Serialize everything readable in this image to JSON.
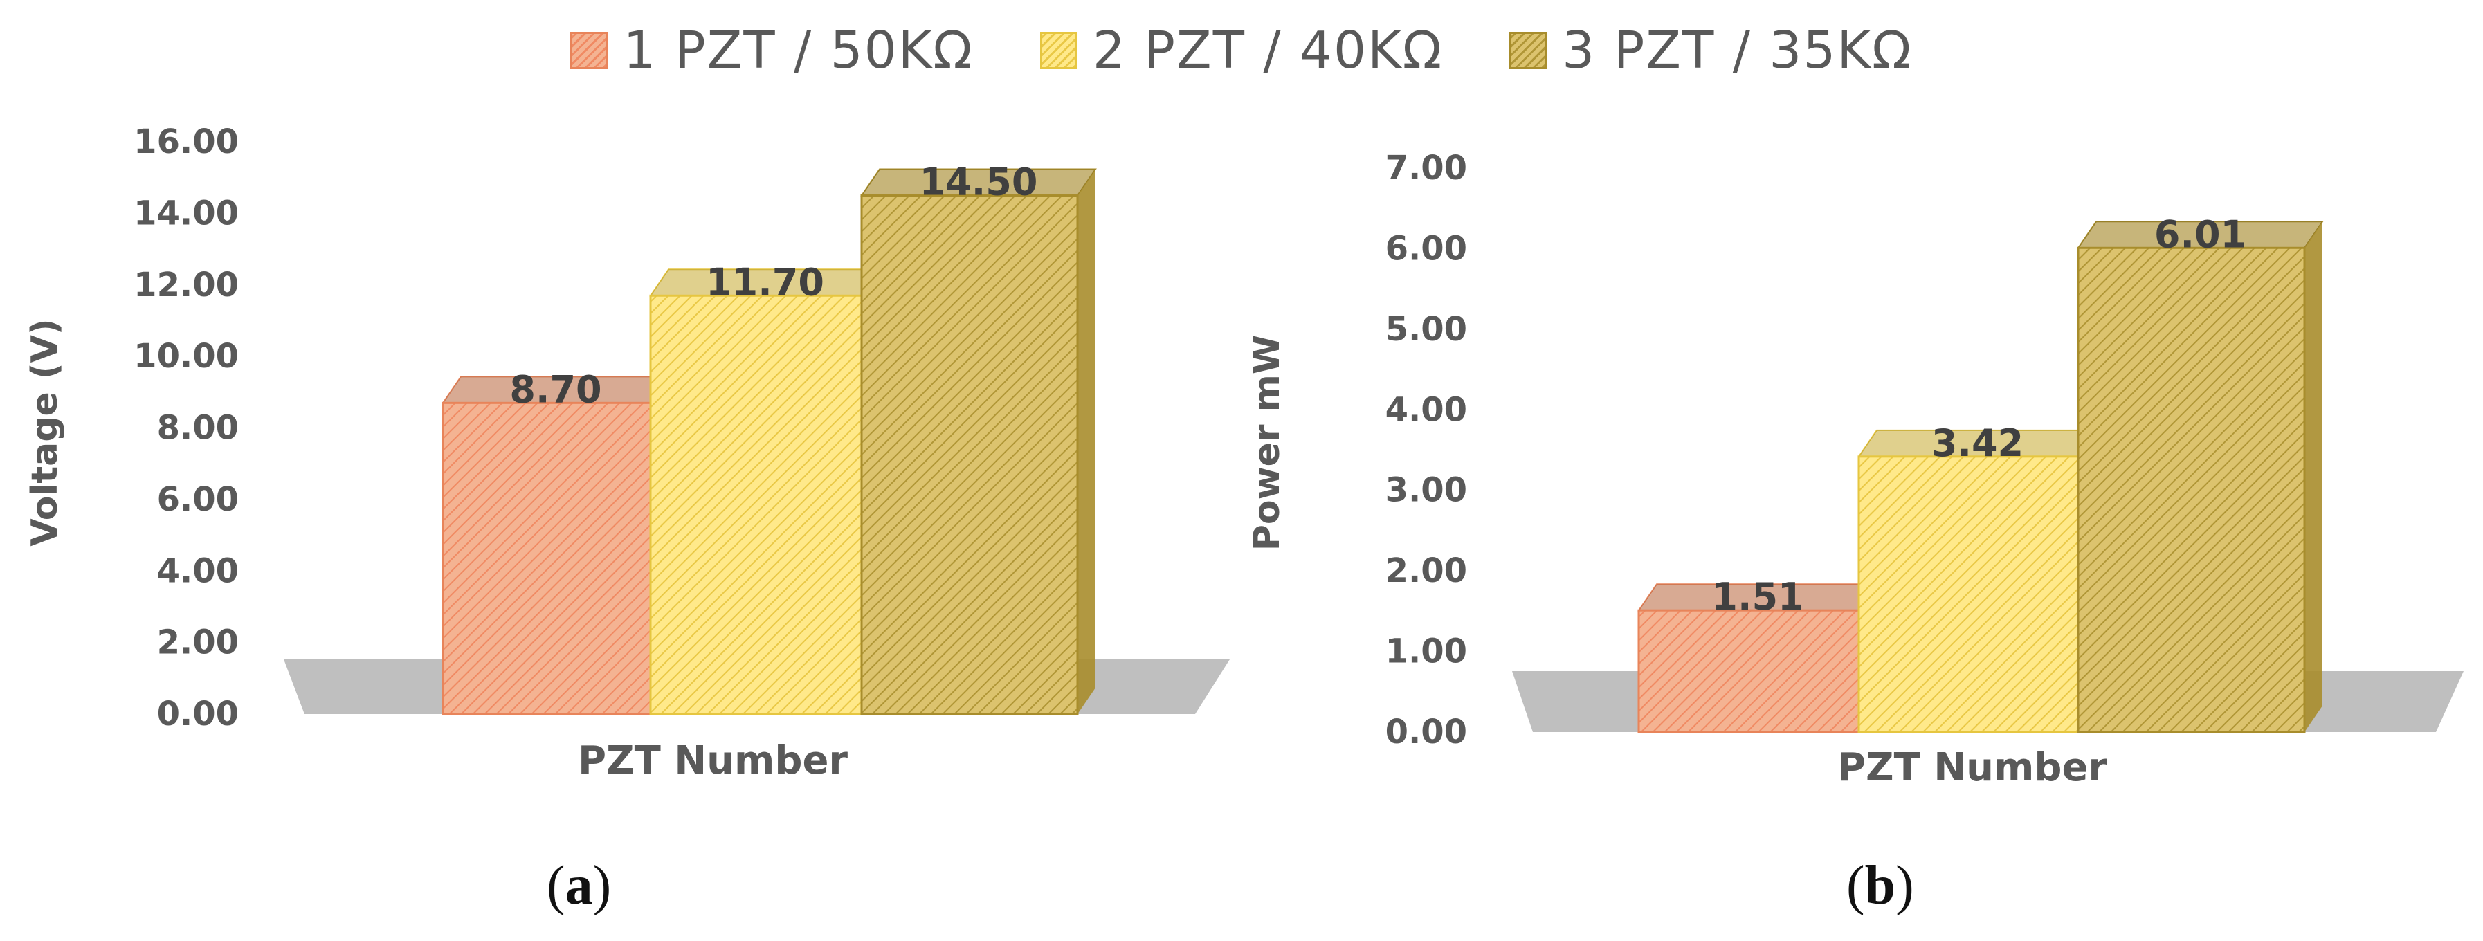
{
  "legend": {
    "items": [
      {
        "label": "1 PZT / 50KΩ",
        "color": "#f4b392",
        "stroke": "#e8845a"
      },
      {
        "label": "2 PZT / 40KΩ",
        "color": "#ffe98a",
        "stroke": "#e6c640"
      },
      {
        "label": "3 PZT / 35KΩ",
        "color": "#dcc36e",
        "stroke": "#a88d2c"
      }
    ]
  },
  "panels": {
    "a": {
      "open": "(",
      "letter": "a",
      "close": ")"
    },
    "b": {
      "open": "(",
      "letter": "b",
      "close": ")"
    }
  },
  "chart_data": [
    {
      "type": "bar",
      "style": "3d-hatched",
      "categories": [
        "PZT Number"
      ],
      "series": [
        {
          "name": "1 PZT / 50KΩ",
          "values": [
            8.7
          ]
        },
        {
          "name": "2 PZT / 40KΩ",
          "values": [
            11.7
          ]
        },
        {
          "name": "3 PZT / 35KΩ",
          "values": [
            14.5
          ]
        }
      ],
      "data_labels": [
        "8.70",
        "11.70",
        "14.50"
      ],
      "xlabel": "PZT Number",
      "ylabel": "Voltage (V)",
      "ylim": [
        0,
        16
      ],
      "yticks": [
        "0.00",
        "2.00",
        "4.00",
        "6.00",
        "8.00",
        "10.00",
        "12.00",
        "14.00",
        "16.00"
      ],
      "grid": false,
      "legend": "top"
    },
    {
      "type": "bar",
      "style": "3d-hatched",
      "categories": [
        "PZT Number"
      ],
      "series": [
        {
          "name": "1 PZT / 50KΩ",
          "values": [
            1.51
          ]
        },
        {
          "name": "2 PZT / 40KΩ",
          "values": [
            3.42
          ]
        },
        {
          "name": "3 PZT / 35KΩ",
          "values": [
            6.01
          ]
        }
      ],
      "data_labels": [
        "1.51",
        "3.42",
        "6.01"
      ],
      "xlabel": "PZT Number",
      "ylabel": "Power mW",
      "ylim": [
        0,
        7
      ],
      "yticks": [
        "0.00",
        "1.00",
        "2.00",
        "3.00",
        "4.00",
        "5.00",
        "6.00",
        "7.00"
      ],
      "grid": false,
      "legend": "top"
    }
  ]
}
